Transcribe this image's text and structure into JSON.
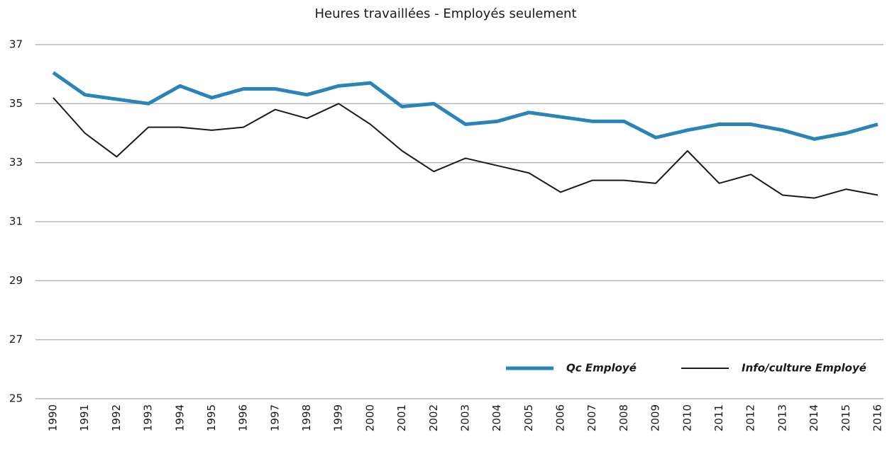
{
  "chart_data": {
    "type": "line",
    "title": "Heures travaillées - Employés seulement",
    "categories": [
      "1990",
      "1991",
      "1992",
      "1993",
      "1994",
      "1995",
      "1996",
      "1997",
      "1998",
      "1999",
      "2000",
      "2001",
      "2002",
      "2003",
      "2004",
      "2005",
      "2006",
      "2007",
      "2008",
      "2009",
      "2010",
      "2011",
      "2012",
      "2013",
      "2014",
      "2015",
      "2016"
    ],
    "series": [
      {
        "name": "Qc Employé",
        "color": "#2a84b8",
        "values": [
          36.05,
          35.3,
          35.15,
          35.0,
          35.6,
          35.2,
          35.5,
          35.5,
          35.3,
          35.6,
          35.7,
          34.9,
          35.0,
          34.3,
          34.4,
          34.7,
          34.55,
          34.4,
          34.4,
          33.85,
          34.1,
          34.3,
          34.3,
          34.1,
          33.8,
          34.0,
          34.3
        ]
      },
      {
        "name": "Info/culture Employé",
        "color": "#1a1a1a",
        "values": [
          35.2,
          34.0,
          33.2,
          34.2,
          34.2,
          34.1,
          34.2,
          34.8,
          34.5,
          35.0,
          34.3,
          33.4,
          32.7,
          33.15,
          32.9,
          32.65,
          32.0,
          32.4,
          32.4,
          32.3,
          33.4,
          32.3,
          32.6,
          31.9,
          31.8,
          32.1,
          31.9
        ]
      }
    ],
    "ylim": [
      25,
      37
    ],
    "yticks": [
      25,
      27,
      29,
      31,
      33,
      35,
      37
    ],
    "grid": true,
    "legend": "bottom-right"
  }
}
